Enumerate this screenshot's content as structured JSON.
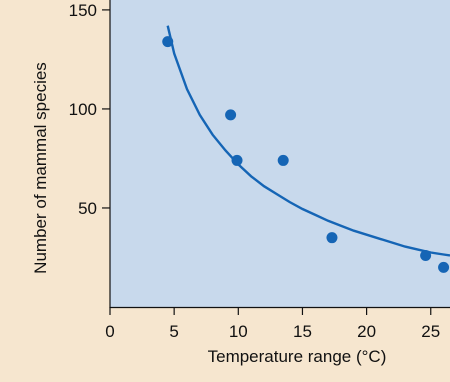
{
  "chart_data": {
    "type": "scatter",
    "xlabel": "Temperature range (°C)",
    "ylabel": "Number of mammal species",
    "xlim": [
      0,
      26.5
    ],
    "ylim": [
      0,
      155
    ],
    "x_ticks": [
      0,
      5,
      10,
      15,
      20,
      25
    ],
    "y_ticks": [
      50,
      100,
      150
    ],
    "grid": false,
    "series": [
      {
        "type": "scatter",
        "x": [
          4.5,
          9.4,
          9.9,
          13.5,
          17.3,
          24.6,
          26.0
        ],
        "y": [
          134,
          97,
          74,
          74,
          35,
          26,
          20
        ],
        "color": "#1565b5"
      },
      {
        "type": "line",
        "fit": "hyperbolic",
        "x": [
          4.5,
          5,
          6,
          7,
          8,
          9,
          10,
          11,
          12,
          13,
          14,
          15,
          16,
          17,
          18,
          19,
          20,
          21,
          22,
          23,
          24,
          25,
          26,
          26.5
        ],
        "y": [
          142,
          128,
          110,
          97,
          87,
          79,
          72,
          66,
          61,
          57,
          53,
          49.5,
          46.5,
          43.5,
          41,
          38.5,
          36.5,
          34.5,
          32.5,
          30.5,
          29,
          27.5,
          26.5,
          26
        ],
        "color": "#1565b5"
      }
    ],
    "colors": {
      "page_background": "#f6e6cf",
      "plot_background": "#c8d9ec",
      "series": "#1565b5"
    }
  }
}
